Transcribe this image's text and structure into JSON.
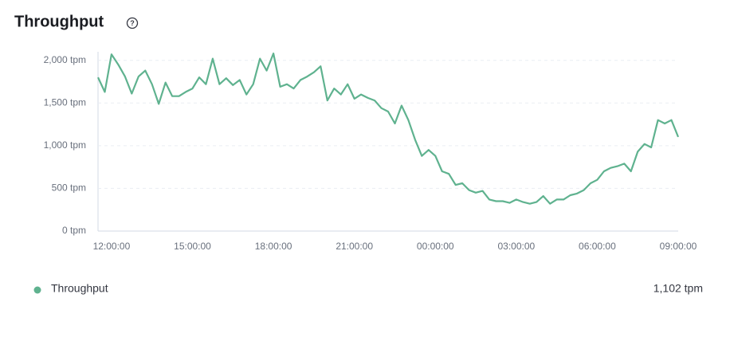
{
  "chart_data": {
    "type": "line",
    "title": "Throughput",
    "categories": [
      null,
      null,
      "12:00:00",
      null,
      null,
      null,
      null,
      null,
      null,
      null,
      null,
      null,
      null,
      null,
      "15:00:00",
      null,
      null,
      null,
      null,
      null,
      null,
      null,
      null,
      null,
      null,
      null,
      "18:00:00",
      null,
      null,
      null,
      null,
      null,
      null,
      null,
      null,
      null,
      null,
      null,
      "21:00:00",
      null,
      null,
      null,
      null,
      null,
      null,
      null,
      null,
      null,
      null,
      null,
      "00:00:00",
      null,
      null,
      null,
      null,
      null,
      null,
      null,
      null,
      null,
      null,
      null,
      "03:00:00",
      null,
      null,
      null,
      null,
      null,
      null,
      null,
      null,
      null,
      null,
      null,
      "06:00:00",
      null,
      null,
      null,
      null,
      null,
      null,
      null,
      null,
      null,
      null,
      null,
      "09:00:00"
    ],
    "series": [
      {
        "name": "Throughput",
        "color": "#5fb28f",
        "values": [
          1800,
          1630,
          2070,
          1950,
          1810,
          1610,
          1810,
          1880,
          1720,
          1490,
          1740,
          1580,
          1580,
          1630,
          1670,
          1800,
          1720,
          2020,
          1720,
          1790,
          1710,
          1770,
          1600,
          1720,
          2020,
          1880,
          2080,
          1690,
          1720,
          1670,
          1770,
          1810,
          1860,
          1930,
          1530,
          1670,
          1600,
          1720,
          1550,
          1600,
          1560,
          1530,
          1440,
          1400,
          1260,
          1470,
          1300,
          1070,
          880,
          950,
          880,
          700,
          670,
          540,
          560,
          480,
          450,
          470,
          370,
          350,
          350,
          330,
          370,
          340,
          320,
          340,
          410,
          320,
          370,
          370,
          420,
          440,
          480,
          560,
          600,
          700,
          740,
          760,
          790,
          700,
          930,
          1020,
          980,
          1300,
          1260,
          1300,
          1102
        ],
        "summary_label": "1,102 tpm"
      }
    ],
    "ylim": [
      0,
      2100
    ],
    "yticks": [
      {
        "value": 0,
        "label": "0 tpm"
      },
      {
        "value": 500,
        "label": "500 tpm"
      },
      {
        "value": 1000,
        "label": "1,000 tpm"
      },
      {
        "value": 1500,
        "label": "1,500 tpm"
      },
      {
        "value": 2000,
        "label": "2,000 tpm"
      }
    ],
    "grid": true
  }
}
